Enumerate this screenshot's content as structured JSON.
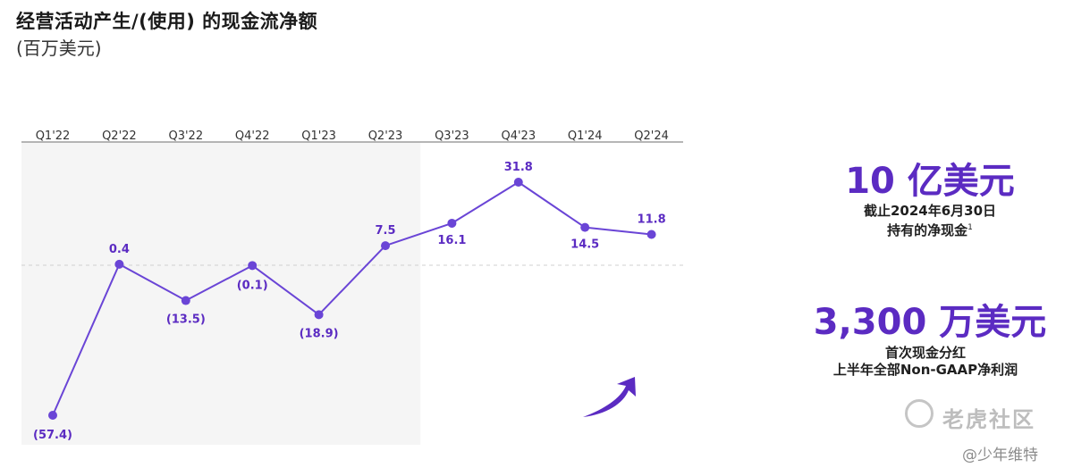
{
  "header": {
    "title": "经营活动产生/(使用) 的现金流净额",
    "unit": "(百万美元)"
  },
  "chart_data": {
    "type": "line",
    "categories": [
      "Q1'22",
      "Q2'22",
      "Q3'22",
      "Q4'22",
      "Q1'23",
      "Q2'23",
      "Q3'23",
      "Q4'23",
      "Q1'24",
      "Q2'24"
    ],
    "series": [
      {
        "values": [
          -57.4,
          0.4,
          -13.5,
          -0.1,
          -18.9,
          7.5,
          16.1,
          31.8,
          14.5,
          11.8
        ]
      }
    ],
    "data_labels": [
      "(57.4)",
      "0.4",
      "(13.5)",
      "(0.1)",
      "(18.9)",
      "7.5",
      "16.1",
      "31.8",
      "14.5",
      "11.8"
    ],
    "ylim": [
      -57.4,
      31.8
    ],
    "zero_line": "dashed",
    "shaded_region": [
      "Q1'22",
      "Q2'23"
    ],
    "colors": {
      "line": "#6a45d6",
      "shade": "#f5f5f5",
      "accent_text": "#5b2bc2",
      "arrow": "#5b2bc2"
    },
    "trend_arrow": "up"
  },
  "kpis": [
    {
      "value": "10 亿美元",
      "caption": [
        "截止2024年6月30日",
        "持有的净现金"
      ],
      "footnote": "1"
    },
    {
      "value": "3,300 万美元",
      "caption": [
        "首次现金分红",
        "上半年全部Non-GAAP净利润"
      ]
    }
  ],
  "watermark": {
    "site": "老虎社区",
    "handle": "@少年维特",
    "logo_icon": "tiger-community-logo-icon"
  }
}
